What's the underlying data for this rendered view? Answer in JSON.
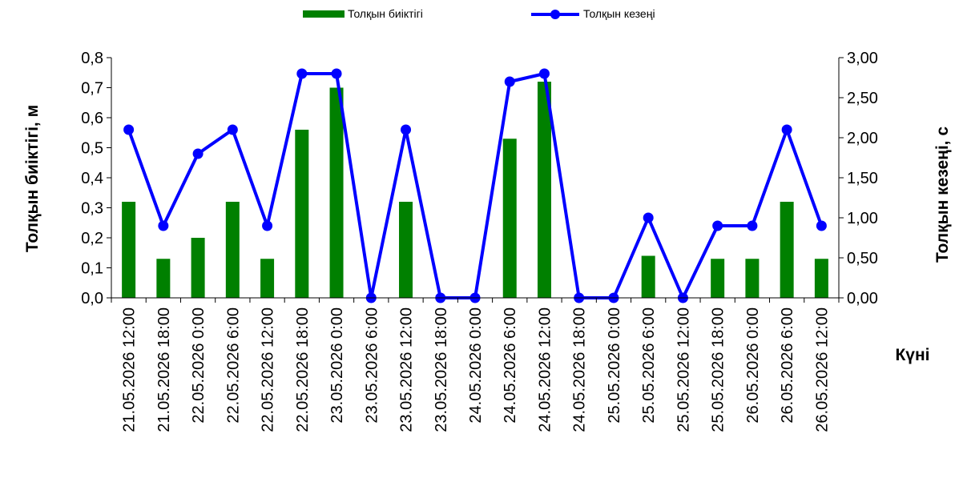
{
  "chart_data": {
    "type": "bar+line",
    "categories": [
      "21.05.2026 12:00",
      "21.05.2026 18:00",
      "22.05.2026 0:00",
      "22.05.2026 6:00",
      "22.05.2026 12:00",
      "22.05.2026 18:00",
      "23.05.2026 0:00",
      "23.05.2026 6:00",
      "23.05.2026 12:00",
      "23.05.2026 18:00",
      "24.05.2026 0:00",
      "24.05.2026 6:00",
      "24.05.2026 12:00",
      "24.05.2026 18:00",
      "25.05.2026 0:00",
      "25.05.2026 6:00",
      "25.05.2026 12:00",
      "25.05.2026 18:00",
      "26.05.2026 0:00",
      "26.05.2026 6:00",
      "26.05.2026 12:00"
    ],
    "series": [
      {
        "name": "Толқын биіктігі",
        "type": "bar",
        "axis": "left",
        "color": "#008000",
        "values": [
          0.32,
          0.13,
          0.2,
          0.32,
          0.13,
          0.56,
          0.7,
          0.0,
          0.32,
          0.0,
          0.0,
          0.53,
          0.72,
          0.0,
          0.0,
          0.14,
          0.0,
          0.13,
          0.13,
          0.32,
          0.13
        ]
      },
      {
        "name": "Толқын кезеңі",
        "type": "line",
        "axis": "right",
        "color": "#0000ff",
        "values": [
          2.1,
          0.9,
          1.8,
          2.1,
          0.9,
          2.8,
          2.8,
          0.0,
          2.1,
          0.0,
          0.0,
          2.7,
          2.8,
          0.0,
          0.0,
          1.0,
          0.0,
          0.9,
          0.9,
          2.1,
          0.9
        ]
      }
    ],
    "left_axis": {
      "label": "Толқын биіктігі, м",
      "ylim": [
        0,
        0.8
      ],
      "ticks": [
        "0,0",
        "0,1",
        "0,2",
        "0,3",
        "0,4",
        "0,5",
        "0,6",
        "0,7",
        "0,8"
      ]
    },
    "right_axis": {
      "label": "Толқын кезеңі, с",
      "ylim": [
        0,
        3.0
      ],
      "ticks": [
        "0,00",
        "0,50",
        "1,00",
        "1,50",
        "2,00",
        "2,50",
        "3,00"
      ]
    },
    "xlabel": "Күні",
    "legend": {
      "position": "top-center"
    },
    "grid": false
  }
}
